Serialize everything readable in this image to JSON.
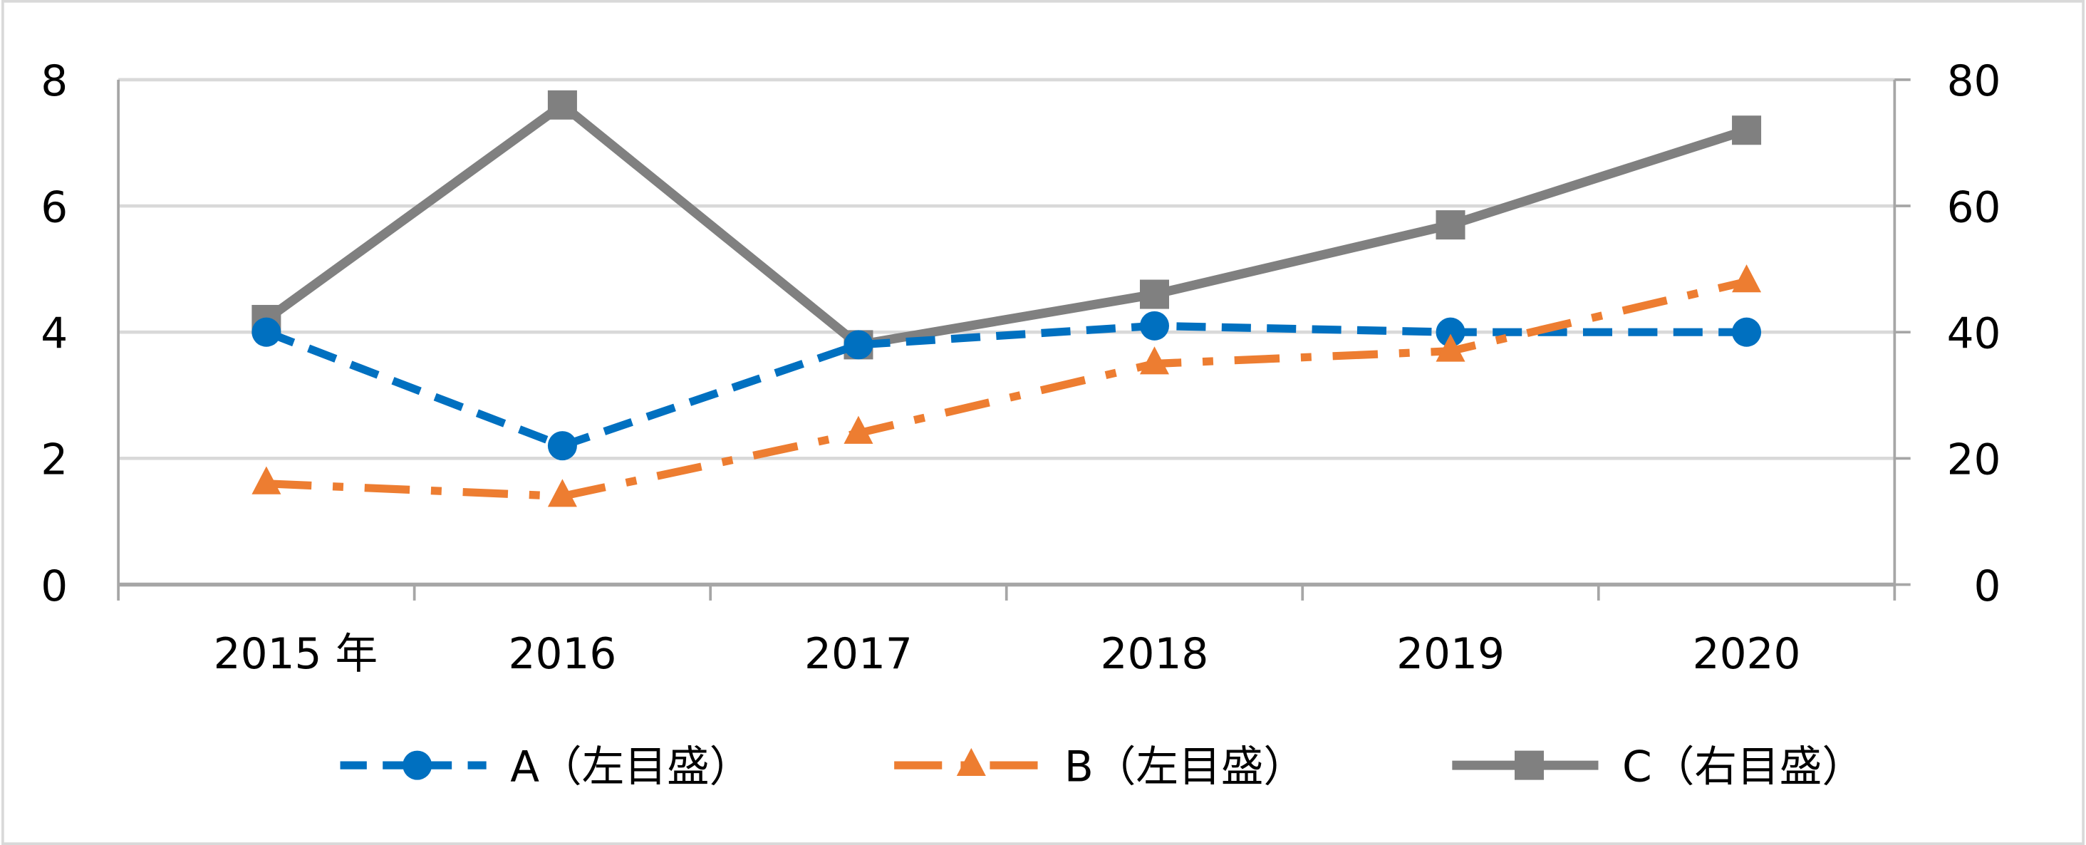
{
  "chart_data": {
    "type": "line",
    "categories": [
      "2015 年",
      "2016",
      "2017",
      "2018",
      "2019",
      "2020"
    ],
    "y_left": {
      "ylim": [
        0,
        8
      ],
      "ticks": [
        "0",
        "2",
        "4",
        "6",
        "8"
      ]
    },
    "y_right": {
      "ylim": [
        0,
        80
      ],
      "ticks": [
        "0",
        "20",
        "40",
        "60",
        "80"
      ]
    },
    "grid": true,
    "legend_position": "bottom",
    "series": [
      {
        "name": "A（左目盛）",
        "axis": "left",
        "color": "#0070C0",
        "marker": "circle",
        "dash": "dash",
        "values": [
          4.0,
          2.2,
          3.8,
          4.1,
          4.0,
          4.0
        ]
      },
      {
        "name": "B（左目盛）",
        "axis": "left",
        "color": "#ED7D31",
        "marker": "triangle",
        "dash": "dash-dot",
        "values": [
          1.6,
          1.4,
          2.4,
          3.5,
          3.7,
          4.8
        ]
      },
      {
        "name": "C（右目盛）",
        "axis": "right",
        "color": "#808080",
        "marker": "square",
        "dash": "solid",
        "values": [
          42,
          76,
          38,
          46,
          57,
          72
        ]
      }
    ]
  }
}
